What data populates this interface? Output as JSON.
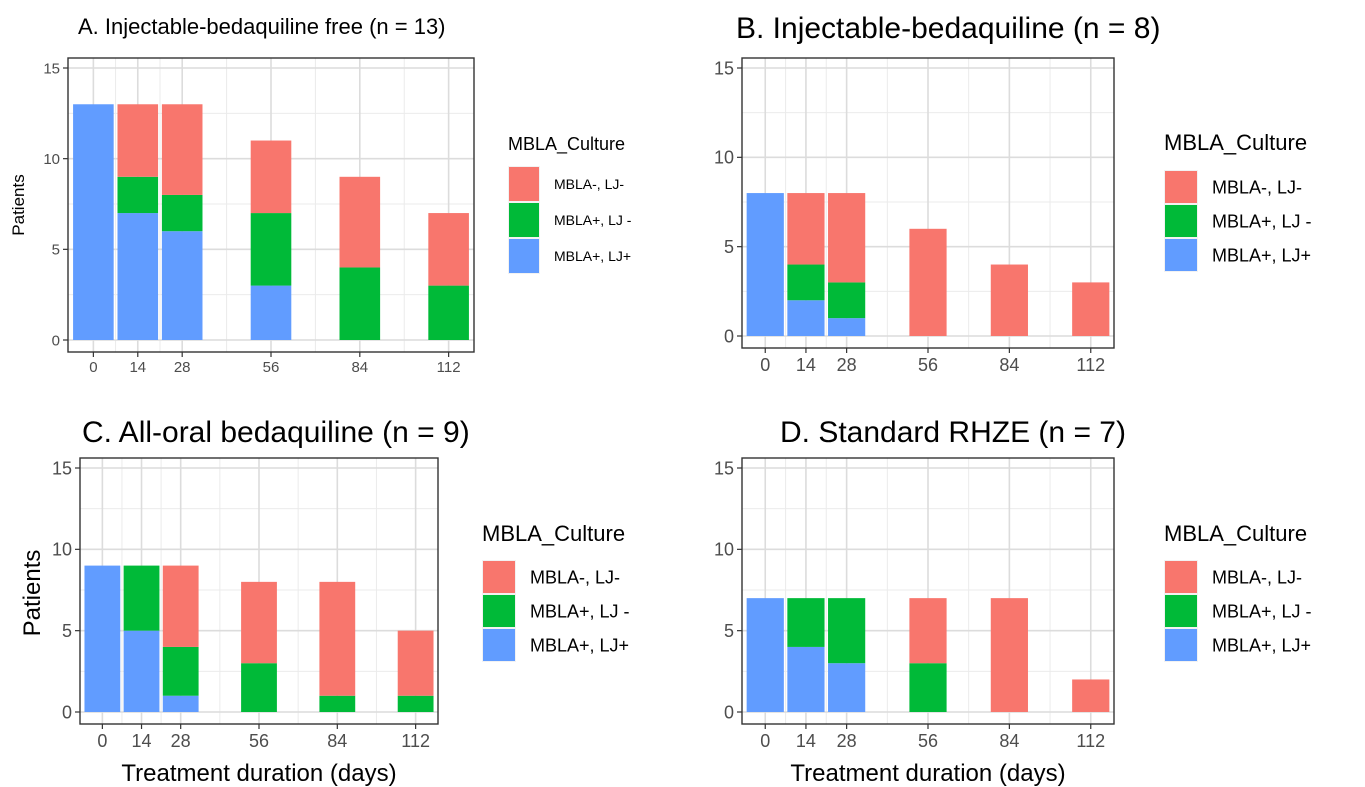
{
  "chart_data": [
    {
      "type": "bar",
      "stacked": true,
      "title": "A. Injectable-bedaquiline free (n = 13)",
      "xlabel": "",
      "ylabel": "Patients",
      "x": [
        0,
        14,
        28,
        56,
        84,
        112
      ],
      "ylim": [
        0,
        15
      ],
      "yticks": [
        0,
        5,
        10,
        15
      ],
      "grid": true,
      "legend_title": "MBLA_Culture",
      "legend_position": "right",
      "series": [
        {
          "name": "MBLA+, LJ+",
          "color": "#619CFF",
          "values": [
            13,
            7,
            6,
            3,
            0,
            0
          ]
        },
        {
          "name": "MBLA+, LJ -",
          "color": "#00BA38",
          "values": [
            0,
            2,
            2,
            4,
            4,
            3
          ]
        },
        {
          "name": "MBLA-, LJ-",
          "color": "#F8766D",
          "values": [
            0,
            4,
            5,
            4,
            5,
            4
          ]
        }
      ]
    },
    {
      "type": "bar",
      "stacked": true,
      "title": "B. Injectable-bedaquiline (n = 8)",
      "xlabel": "",
      "ylabel": "",
      "x": [
        0,
        14,
        28,
        56,
        84,
        112
      ],
      "ylim": [
        0,
        15
      ],
      "yticks": [
        0,
        5,
        10,
        15
      ],
      "grid": true,
      "legend_title": "MBLA_Culture",
      "legend_position": "right",
      "series": [
        {
          "name": "MBLA+, LJ+",
          "color": "#619CFF",
          "values": [
            8,
            2,
            1,
            0,
            0,
            0
          ]
        },
        {
          "name": "MBLA+, LJ -",
          "color": "#00BA38",
          "values": [
            0,
            2,
            2,
            0,
            0,
            0
          ]
        },
        {
          "name": "MBLA-, LJ-",
          "color": "#F8766D",
          "values": [
            0,
            4,
            5,
            6,
            4,
            3
          ]
        }
      ]
    },
    {
      "type": "bar",
      "stacked": true,
      "title": "C. All-oral bedaquiline (n = 9)",
      "xlabel": "Treatment duration (days)",
      "ylabel": "Patients",
      "x": [
        0,
        14,
        28,
        56,
        84,
        112
      ],
      "ylim": [
        0,
        15
      ],
      "yticks": [
        0,
        5,
        10,
        15
      ],
      "grid": true,
      "legend_title": "MBLA_Culture",
      "legend_position": "right",
      "series": [
        {
          "name": "MBLA+, LJ+",
          "color": "#619CFF",
          "values": [
            9,
            5,
            1,
            0,
            0,
            0
          ]
        },
        {
          "name": "MBLA+, LJ -",
          "color": "#00BA38",
          "values": [
            0,
            4,
            3,
            3,
            1,
            1
          ]
        },
        {
          "name": "MBLA-, LJ-",
          "color": "#F8766D",
          "values": [
            0,
            0,
            5,
            5,
            7,
            4
          ]
        }
      ]
    },
    {
      "type": "bar",
      "stacked": true,
      "title": "D. Standard RHZE (n = 7)",
      "xlabel": "Treatment duration (days)",
      "ylabel": "",
      "x": [
        0,
        14,
        28,
        56,
        84,
        112
      ],
      "ylim": [
        0,
        15
      ],
      "yticks": [
        0,
        5,
        10,
        15
      ],
      "grid": true,
      "legend_title": "MBLA_Culture",
      "legend_position": "right",
      "series": [
        {
          "name": "MBLA+, LJ+",
          "color": "#619CFF",
          "values": [
            7,
            4,
            3,
            0,
            0,
            0
          ]
        },
        {
          "name": "MBLA+, LJ -",
          "color": "#00BA38",
          "values": [
            0,
            3,
            4,
            3,
            0,
            0
          ]
        },
        {
          "name": "MBLA-, LJ-",
          "color": "#F8766D",
          "values": [
            0,
            0,
            0,
            4,
            7,
            2
          ]
        }
      ]
    }
  ]
}
